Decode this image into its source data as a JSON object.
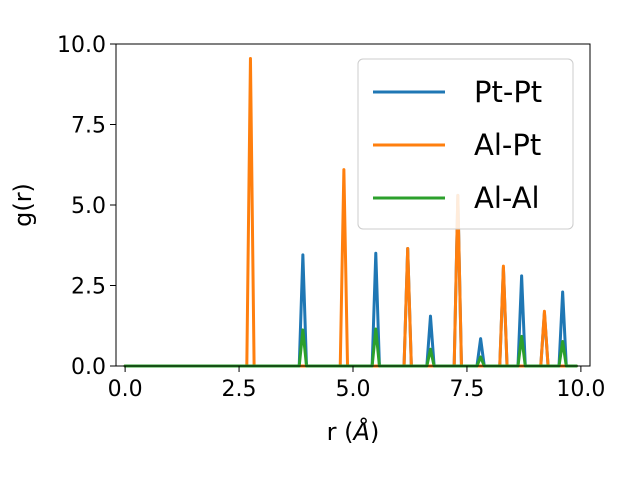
{
  "chart_data": {
    "type": "line",
    "xlabel_main": "r (",
    "xlabel_unit": "Å",
    "xlabel_close": ")",
    "ylabel": "g(r)",
    "xlim": [
      -0.2,
      10.2
    ],
    "ylim": [
      0,
      10
    ],
    "xticks": [
      0,
      2.5,
      5,
      7.5,
      10
    ],
    "xtick_labels": [
      "0.0",
      "2.5",
      "5.0",
      "7.5",
      "10.0"
    ],
    "yticks": [
      0,
      2.5,
      5,
      7.5,
      10
    ],
    "ytick_labels": [
      "0.0",
      "2.5",
      "5.0",
      "7.5",
      "10.0"
    ],
    "grid": false,
    "legend_position": "top-right",
    "peak_halfwidth": 0.08,
    "x_start": 0,
    "x_end": 9.9,
    "series": [
      {
        "name": "Pt-Pt",
        "color": "#1f77b4",
        "peaks": [
          [
            3.9,
            3.45
          ],
          [
            5.5,
            3.5
          ],
          [
            6.2,
            3.65
          ],
          [
            6.7,
            1.55
          ],
          [
            7.3,
            5.3
          ],
          [
            7.8,
            0.85
          ],
          [
            8.3,
            3.05
          ],
          [
            8.7,
            2.8
          ],
          [
            9.2,
            1.65
          ],
          [
            9.6,
            2.3
          ]
        ]
      },
      {
        "name": "Al-Pt",
        "color": "#ff7f0e",
        "peaks": [
          [
            2.75,
            9.55
          ],
          [
            4.8,
            6.1
          ],
          [
            6.2,
            3.65
          ],
          [
            7.3,
            5.3
          ],
          [
            8.3,
            3.1
          ],
          [
            9.2,
            1.7
          ]
        ]
      },
      {
        "name": "Al-Al",
        "color": "#2ca02c",
        "peaks": [
          [
            3.9,
            1.12
          ],
          [
            5.5,
            1.15
          ],
          [
            6.7,
            0.52
          ],
          [
            7.8,
            0.28
          ],
          [
            8.7,
            0.92
          ],
          [
            9.6,
            0.76
          ]
        ]
      }
    ]
  }
}
